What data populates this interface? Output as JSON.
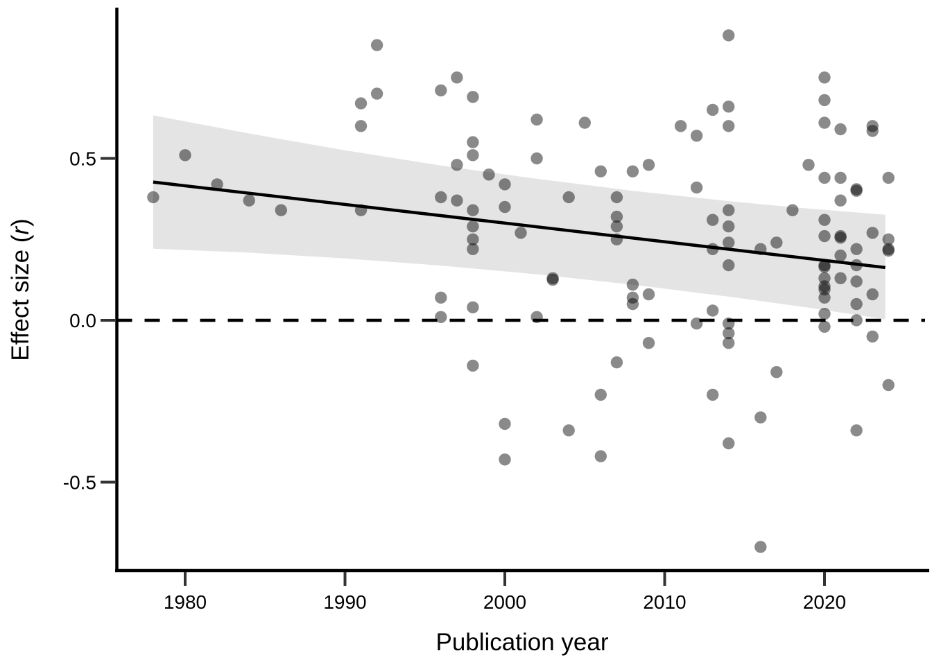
{
  "figure": {
    "background": "#ffffff"
  },
  "chart_data": {
    "type": "scatter",
    "title": "",
    "xlabel": "Publication year",
    "ylabel": "Effect size (r)",
    "ylabel_parts": {
      "prefix": "Effect size (",
      "variable": "r",
      "suffix": ")"
    },
    "xlim": [
      1975.7,
      2026.5
    ],
    "ylim": [
      -0.77,
      0.97
    ],
    "grid": false,
    "legend": false,
    "x_ticks": [
      {
        "value": 1980,
        "label": "1980"
      },
      {
        "value": 1990,
        "label": "1990"
      },
      {
        "value": 2000,
        "label": "2000"
      },
      {
        "value": 2010,
        "label": "2010"
      },
      {
        "value": 2020,
        "label": "2020"
      }
    ],
    "y_ticks": [
      {
        "value": 0.5,
        "label": "0.5"
      },
      {
        "value": 0.0,
        "label": "0.0"
      },
      {
        "value": -0.5,
        "label": "-0.5"
      }
    ],
    "zero_line": {
      "y": 0.0,
      "style": "dashed"
    },
    "trend_line": {
      "x1": 1978,
      "y1": 0.427,
      "x2": 2023.8,
      "y2": 0.163
    },
    "confidence_band": {
      "x": [
        1978,
        1984,
        1990,
        1996,
        2002,
        2008,
        2014,
        2019,
        2023.8
      ],
      "upper": [
        0.633,
        0.577,
        0.525,
        0.478,
        0.437,
        0.4,
        0.368,
        0.345,
        0.326
      ],
      "lower": [
        0.221,
        0.209,
        0.191,
        0.169,
        0.142,
        0.11,
        0.073,
        0.039,
        0.003
      ]
    },
    "points": [
      [
        1978,
        0.38
      ],
      [
        1980,
        0.51
      ],
      [
        1982,
        0.42
      ],
      [
        1984,
        0.37
      ],
      [
        1986,
        0.34
      ],
      [
        1991,
        0.67
      ],
      [
        1991,
        0.6
      ],
      [
        1991,
        0.34
      ],
      [
        1992,
        0.85
      ],
      [
        1992,
        0.7
      ],
      [
        1996,
        0.71
      ],
      [
        1996,
        0.38
      ],
      [
        1996,
        0.07
      ],
      [
        1996,
        0.01
      ],
      [
        1997,
        0.75
      ],
      [
        1997,
        0.48
      ],
      [
        1997,
        0.37
      ],
      [
        1998,
        0.69
      ],
      [
        1998,
        0.55
      ],
      [
        1998,
        0.51
      ],
      [
        1998,
        0.34
      ],
      [
        1998,
        0.29
      ],
      [
        1998,
        0.25
      ],
      [
        1998,
        0.22
      ],
      [
        1998,
        0.04
      ],
      [
        1998,
        -0.14
      ],
      [
        1999,
        0.45
      ],
      [
        2000,
        0.42
      ],
      [
        2000,
        0.35
      ],
      [
        2000,
        -0.32
      ],
      [
        2000,
        -0.43
      ],
      [
        2001,
        0.27
      ],
      [
        2002,
        0.62
      ],
      [
        2002,
        0.5
      ],
      [
        2002,
        0.01
      ],
      [
        2003,
        0.13
      ],
      [
        2003,
        0.125
      ],
      [
        2004,
        0.38
      ],
      [
        2004,
        -0.34
      ],
      [
        2005,
        0.61
      ],
      [
        2006,
        0.46
      ],
      [
        2006,
        -0.23
      ],
      [
        2006,
        -0.42
      ],
      [
        2007,
        0.38
      ],
      [
        2007,
        0.32
      ],
      [
        2007,
        0.29
      ],
      [
        2007,
        0.25
      ],
      [
        2007,
        -0.13
      ],
      [
        2008,
        0.46
      ],
      [
        2008,
        0.11
      ],
      [
        2008,
        0.07
      ],
      [
        2008,
        0.05
      ],
      [
        2009,
        0.48
      ],
      [
        2009,
        0.08
      ],
      [
        2009,
        -0.07
      ],
      [
        2011,
        0.6
      ],
      [
        2012,
        0.57
      ],
      [
        2012,
        0.41
      ],
      [
        2012,
        -0.01
      ],
      [
        2013,
        0.65
      ],
      [
        2013,
        0.31
      ],
      [
        2013,
        0.22
      ],
      [
        2013,
        0.03
      ],
      [
        2013,
        -0.23
      ],
      [
        2014,
        0.88
      ],
      [
        2014,
        0.66
      ],
      [
        2014,
        0.6
      ],
      [
        2014,
        0.34
      ],
      [
        2014,
        0.29
      ],
      [
        2014,
        0.24
      ],
      [
        2014,
        0.17
      ],
      [
        2014,
        -0.01
      ],
      [
        2014,
        -0.04
      ],
      [
        2014,
        -0.07
      ],
      [
        2014,
        -0.38
      ],
      [
        2016,
        0.22
      ],
      [
        2016,
        -0.3
      ],
      [
        2016,
        -0.7
      ],
      [
        2017,
        0.24
      ],
      [
        2017,
        -0.16
      ],
      [
        2018,
        0.34
      ],
      [
        2019,
        0.48
      ],
      [
        2020,
        0.75
      ],
      [
        2020,
        0.68
      ],
      [
        2020,
        0.61
      ],
      [
        2020,
        0.44
      ],
      [
        2020,
        0.31
      ],
      [
        2020,
        0.26
      ],
      [
        2020,
        0.17
      ],
      [
        2020,
        0.165
      ],
      [
        2020,
        0.13
      ],
      [
        2020,
        0.105
      ],
      [
        2020,
        0.095
      ],
      [
        2020,
        0.07
      ],
      [
        2020,
        0.02
      ],
      [
        2020,
        -0.02
      ],
      [
        2021,
        0.59
      ],
      [
        2021,
        0.44
      ],
      [
        2021,
        0.37
      ],
      [
        2021,
        0.26
      ],
      [
        2021,
        0.255
      ],
      [
        2021,
        0.2
      ],
      [
        2021,
        0.13
      ],
      [
        2022,
        0.405
      ],
      [
        2022,
        0.4
      ],
      [
        2022,
        0.22
      ],
      [
        2022,
        0.17
      ],
      [
        2022,
        0.12
      ],
      [
        2022,
        0.05
      ],
      [
        2022,
        0.0
      ],
      [
        2022,
        -0.34
      ],
      [
        2023,
        0.6
      ],
      [
        2023,
        0.585
      ],
      [
        2023,
        0.27
      ],
      [
        2023,
        0.08
      ],
      [
        2023,
        -0.05
      ],
      [
        2024,
        0.44
      ],
      [
        2024,
        0.25
      ],
      [
        2024,
        0.22
      ],
      [
        2024,
        0.215
      ],
      [
        2024,
        -0.2
      ]
    ],
    "styles": {
      "point_color": "#000000",
      "point_opacity": 0.46,
      "point_radius": 8.7,
      "band_color": "#e4e4e4",
      "line_color": "#000000",
      "axis_color": "#000000",
      "tick_color": "#333333",
      "text_color": "#000000",
      "background": "#ffffff"
    }
  }
}
